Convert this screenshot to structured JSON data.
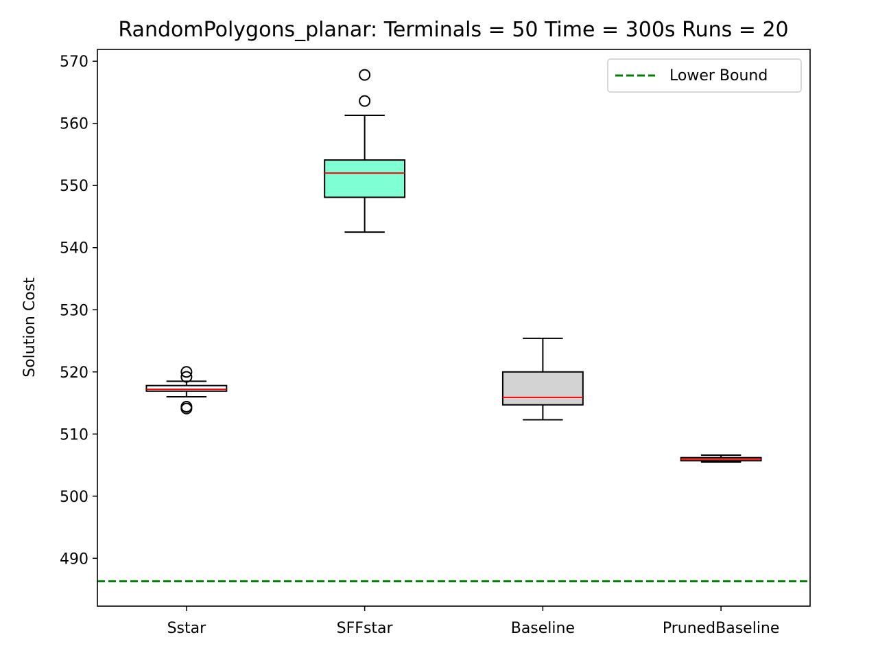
{
  "chart_data": {
    "type": "box",
    "title": "RandomPolygons_planar:  Terminals = 50  Time = 300s  Runs = 20",
    "xlabel": "",
    "ylabel": "Solution Cost",
    "ylim": [
      482.3,
      571.9
    ],
    "yticks": [
      490,
      500,
      510,
      520,
      530,
      540,
      550,
      560,
      570
    ],
    "categories": [
      "Sstar",
      "SFFstar",
      "Baseline",
      "PrunedBaseline"
    ],
    "boxes": [
      {
        "name": "Sstar",
        "whislo": 516.0,
        "q1": 516.9,
        "median": 517.2,
        "q3": 517.8,
        "whishi": 518.5,
        "fliers": [
          519.2,
          520.0,
          514.1,
          514.4
        ],
        "fill": "#ffffff"
      },
      {
        "name": "SFFstar",
        "whislo": 542.5,
        "q1": 548.1,
        "median": 552.0,
        "q3": 554.1,
        "whishi": 561.3,
        "fliers": [
          563.6,
          567.8
        ],
        "fill": "#7fffd4"
      },
      {
        "name": "Baseline",
        "whislo": 512.3,
        "q1": 514.7,
        "median": 515.9,
        "q3": 520.0,
        "whishi": 525.4,
        "fliers": [],
        "fill": "#d3d3d3"
      },
      {
        "name": "PrunedBaseline",
        "whislo": 505.5,
        "q1": 505.7,
        "median": 505.95,
        "q3": 506.2,
        "whishi": 506.6,
        "fliers": [],
        "fill": "#ffffff"
      }
    ],
    "reference_lines": [
      {
        "name": "Lower Bound",
        "y": 486.3,
        "style": "dashed",
        "color": "#008000"
      }
    ],
    "legend": {
      "position": "top-right",
      "entries": [
        "Lower Bound"
      ]
    },
    "colors": {
      "median": "#ff0000",
      "box_edge": "#000000",
      "lower_bound": "#008000"
    },
    "grid": false
  }
}
